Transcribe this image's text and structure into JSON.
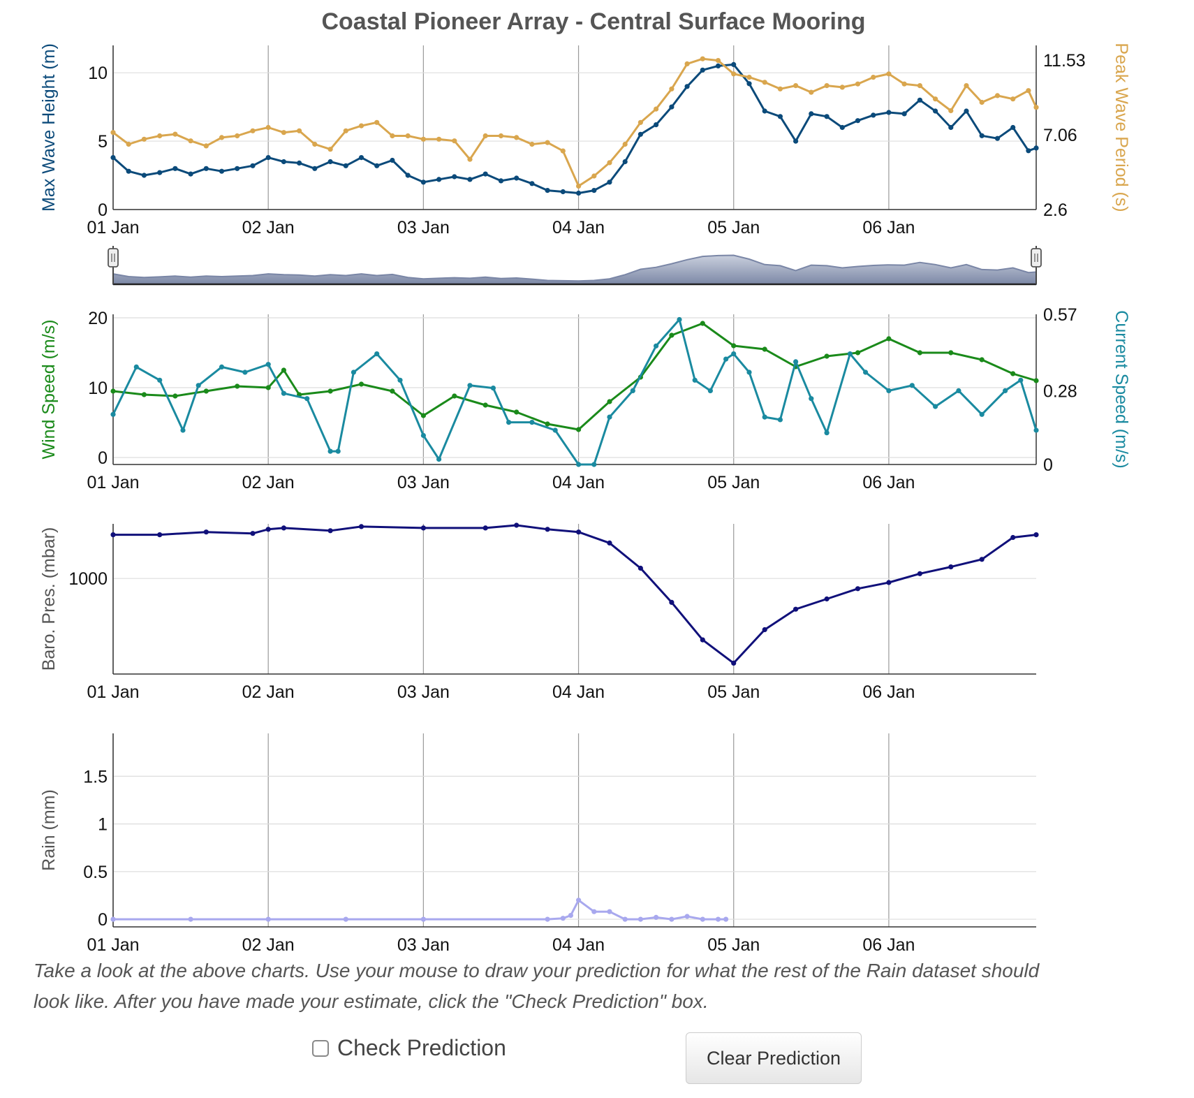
{
  "title": "Coastal Pioneer Array - Central Surface Mooring",
  "x_tick_labels": [
    "01 Jan",
    "02 Jan",
    "03 Jan",
    "04 Jan",
    "05 Jan",
    "06 Jan"
  ],
  "instructions": "Take a look at the above charts. Use your mouse to draw your prediction for what the rest of the Rain dataset should look like. After you have made your estimate, click the \"Check Prediction\" box.",
  "check_label": "Check Prediction",
  "clear_label": "Clear Prediction",
  "colors": {
    "wave_height": "#0b4a7a",
    "wave_period": "#d9a64e",
    "wind": "#1a8a1a",
    "current": "#1a8aa0",
    "pressure": "#10107a",
    "rain": "#a8a8ee",
    "navigator": "#7a86a6"
  },
  "chart_data": [
    {
      "type": "line",
      "x_unit": "days since 01 Jan",
      "xlim": [
        0,
        5.95
      ],
      "grid": true,
      "y_axis_left": {
        "label": "Max Wave Height (m)",
        "ylim": [
          0,
          12
        ],
        "ticks": [
          "0",
          "5",
          "10"
        ]
      },
      "y_axis_right": {
        "label": "Peak Wave Period (s)",
        "ylim": [
          2.6,
          12.4
        ],
        "ticks": [
          "2.6",
          "7.06",
          "11.53"
        ]
      },
      "series": [
        {
          "name": "Max Wave Height (m)",
          "axis": "left",
          "color": "#0b4a7a",
          "x": [
            0,
            0.1,
            0.2,
            0.3,
            0.4,
            0.5,
            0.6,
            0.7,
            0.8,
            0.9,
            1.0,
            1.1,
            1.2,
            1.3,
            1.4,
            1.5,
            1.6,
            1.7,
            1.8,
            1.9,
            2.0,
            2.1,
            2.2,
            2.3,
            2.4,
            2.5,
            2.6,
            2.7,
            2.8,
            2.9,
            3.0,
            3.1,
            3.2,
            3.3,
            3.4,
            3.5,
            3.6,
            3.7,
            3.8,
            3.9,
            4.0,
            4.1,
            4.2,
            4.3,
            4.4,
            4.5,
            4.6,
            4.7,
            4.8,
            4.9,
            5.0,
            5.1,
            5.2,
            5.3,
            5.4,
            5.5,
            5.6,
            5.7,
            5.8,
            5.9,
            5.95
          ],
          "y": [
            3.8,
            2.8,
            2.5,
            2.7,
            3.0,
            2.6,
            3.0,
            2.8,
            3.0,
            3.2,
            3.8,
            3.5,
            3.4,
            3.0,
            3.5,
            3.2,
            3.8,
            3.2,
            3.6,
            2.5,
            2.0,
            2.2,
            2.4,
            2.2,
            2.6,
            2.1,
            2.3,
            1.9,
            1.4,
            1.3,
            1.2,
            1.4,
            2.0,
            3.5,
            5.5,
            6.2,
            7.5,
            9.0,
            10.2,
            10.5,
            10.6,
            9.2,
            7.2,
            6.8,
            5.0,
            7.0,
            6.8,
            6.0,
            6.5,
            6.9,
            7.1,
            7.0,
            8.0,
            7.2,
            6.0,
            7.2,
            5.4,
            5.2,
            6.0,
            4.3,
            4.5
          ]
        },
        {
          "name": "Peak Wave Period (s)",
          "axis": "right",
          "color": "#d9a64e",
          "x": [
            0,
            0.1,
            0.2,
            0.3,
            0.4,
            0.5,
            0.6,
            0.7,
            0.8,
            0.9,
            1.0,
            1.1,
            1.2,
            1.3,
            1.4,
            1.5,
            1.6,
            1.7,
            1.8,
            1.9,
            2.0,
            2.1,
            2.2,
            2.3,
            2.4,
            2.5,
            2.6,
            2.7,
            2.8,
            2.9,
            3.0,
            3.1,
            3.2,
            3.3,
            3.4,
            3.5,
            3.6,
            3.7,
            3.8,
            3.9,
            4.0,
            4.1,
            4.2,
            4.3,
            4.4,
            4.5,
            4.6,
            4.7,
            4.8,
            4.9,
            5.0,
            5.1,
            5.2,
            5.3,
            5.4,
            5.5,
            5.6,
            5.7,
            5.8,
            5.9,
            5.95
          ],
          "y": [
            7.2,
            6.5,
            6.8,
            7.0,
            7.1,
            6.7,
            6.4,
            6.9,
            7.0,
            7.3,
            7.5,
            7.2,
            7.3,
            6.5,
            6.2,
            7.3,
            7.6,
            7.8,
            7.0,
            7.0,
            6.8,
            6.8,
            6.7,
            5.6,
            7.0,
            7.0,
            6.9,
            6.5,
            6.6,
            6.1,
            4.0,
            4.6,
            5.4,
            6.5,
            7.8,
            8.6,
            9.8,
            11.3,
            11.6,
            11.5,
            10.7,
            10.5,
            10.2,
            9.8,
            10.0,
            9.6,
            10.0,
            9.9,
            10.1,
            10.5,
            10.7,
            10.1,
            10.0,
            9.2,
            8.5,
            10.0,
            9.0,
            9.4,
            9.2,
            9.7,
            8.7
          ]
        }
      ],
      "navigator": {
        "type": "area",
        "handles": [
          "left",
          "right"
        ]
      }
    },
    {
      "type": "line",
      "x_unit": "days since 01 Jan",
      "xlim": [
        0,
        5.95
      ],
      "grid": true,
      "y_axis_left": {
        "label": "Wind Speed (m/s)",
        "ylim": [
          -1,
          20.5
        ],
        "ticks": [
          "0",
          "10",
          "20"
        ]
      },
      "y_axis_right": {
        "label": "Current Speed (m/s)",
        "ylim": [
          0,
          0.57
        ],
        "ticks": [
          "0",
          "0.28",
          "0.57"
        ]
      },
      "series": [
        {
          "name": "Wind Speed (m/s)",
          "axis": "left",
          "color": "#1a8a1a",
          "x": [
            0,
            0.2,
            0.4,
            0.6,
            0.8,
            1.0,
            1.1,
            1.2,
            1.4,
            1.6,
            1.8,
            2.0,
            2.2,
            2.4,
            2.6,
            2.8,
            3.0,
            3.2,
            3.4,
            3.6,
            3.8,
            4.0,
            4.2,
            4.4,
            4.6,
            4.8,
            5.0,
            5.2,
            5.4,
            5.6,
            5.8,
            5.95
          ],
          "y": [
            9.5,
            9.0,
            8.8,
            9.5,
            10.2,
            10.0,
            12.5,
            9.0,
            9.5,
            10.5,
            9.5,
            6.0,
            8.8,
            7.5,
            6.5,
            4.8,
            4.0,
            8.0,
            11.5,
            17.5,
            19.2,
            16.0,
            15.5,
            13.0,
            14.5,
            15.0,
            17.0,
            15.0,
            15.0,
            14.0,
            12.0,
            11.0
          ]
        },
        {
          "name": "Current Speed (m/s)",
          "axis": "right",
          "color": "#1a8aa0",
          "x": [
            0,
            0.15,
            0.3,
            0.45,
            0.55,
            0.7,
            0.85,
            1.0,
            1.1,
            1.25,
            1.4,
            1.45,
            1.55,
            1.7,
            1.85,
            2.0,
            2.1,
            2.3,
            2.45,
            2.55,
            2.7,
            2.85,
            3.0,
            3.1,
            3.2,
            3.35,
            3.5,
            3.65,
            3.75,
            3.85,
            3.95,
            4.0,
            4.1,
            4.2,
            4.3,
            4.4,
            4.5,
            4.6,
            4.75,
            4.85,
            5.0,
            5.15,
            5.3,
            5.45,
            5.6,
            5.75,
            5.85,
            5.95
          ],
          "y": [
            0.19,
            0.37,
            0.32,
            0.13,
            0.3,
            0.37,
            0.35,
            0.38,
            0.27,
            0.25,
            0.05,
            0.05,
            0.35,
            0.42,
            0.32,
            0.11,
            0.02,
            0.3,
            0.29,
            0.16,
            0.16,
            0.13,
            0.0,
            0.0,
            0.18,
            0.28,
            0.45,
            0.55,
            0.32,
            0.28,
            0.4,
            0.42,
            0.35,
            0.18,
            0.17,
            0.39,
            0.25,
            0.12,
            0.42,
            0.35,
            0.28,
            0.3,
            0.22,
            0.28,
            0.19,
            0.28,
            0.32,
            0.13
          ]
        }
      ]
    },
    {
      "type": "line",
      "x_unit": "days since 01 Jan",
      "xlim": [
        0,
        5.95
      ],
      "grid": true,
      "y_axis_left": {
        "label": "Baro. Pres. (mbar)",
        "ylim": [
          986,
          1008
        ],
        "ticks": [
          "1000"
        ]
      },
      "series": [
        {
          "name": "Baro. Pres. (mbar)",
          "axis": "left",
          "color": "#10107a",
          "x": [
            0,
            0.3,
            0.6,
            0.9,
            1.0,
            1.1,
            1.4,
            1.6,
            2.0,
            2.4,
            2.6,
            2.8,
            3.0,
            3.2,
            3.4,
            3.6,
            3.8,
            4.0,
            4.2,
            4.4,
            4.6,
            4.8,
            5.0,
            5.2,
            5.4,
            5.6,
            5.8,
            5.95
          ],
          "y": [
            1006.4,
            1006.4,
            1006.8,
            1006.6,
            1007.2,
            1007.4,
            1007.0,
            1007.6,
            1007.4,
            1007.4,
            1007.8,
            1007.2,
            1006.8,
            1005.2,
            1001.5,
            996.5,
            991.0,
            987.6,
            992.5,
            995.5,
            997.0,
            998.5,
            999.4,
            1000.7,
            1001.7,
            1002.8,
            1006.0,
            1006.4
          ]
        }
      ]
    },
    {
      "type": "line",
      "x_unit": "days since 01 Jan",
      "xlim": [
        0,
        5.95
      ],
      "grid": true,
      "y_axis_left": {
        "label": "Rain (mm)",
        "ylim": [
          -0.08,
          1.95
        ],
        "ticks": [
          "0",
          "0.5",
          "1",
          "1.5"
        ]
      },
      "series": [
        {
          "name": "Rain (mm)",
          "axis": "left",
          "color": "#a8a8ee",
          "x": [
            0,
            0.5,
            1.0,
            1.5,
            2.0,
            2.8,
            2.9,
            2.95,
            3.0,
            3.1,
            3.2,
            3.3,
            3.4,
            3.5,
            3.6,
            3.7,
            3.8,
            3.9,
            3.95
          ],
          "y": [
            0.0,
            0.0,
            0.0,
            0.0,
            0.0,
            0.0,
            0.01,
            0.04,
            0.2,
            0.08,
            0.08,
            0.0,
            0.0,
            0.02,
            0.0,
            0.03,
            0.0,
            0.0,
            0.0
          ]
        }
      ]
    }
  ]
}
